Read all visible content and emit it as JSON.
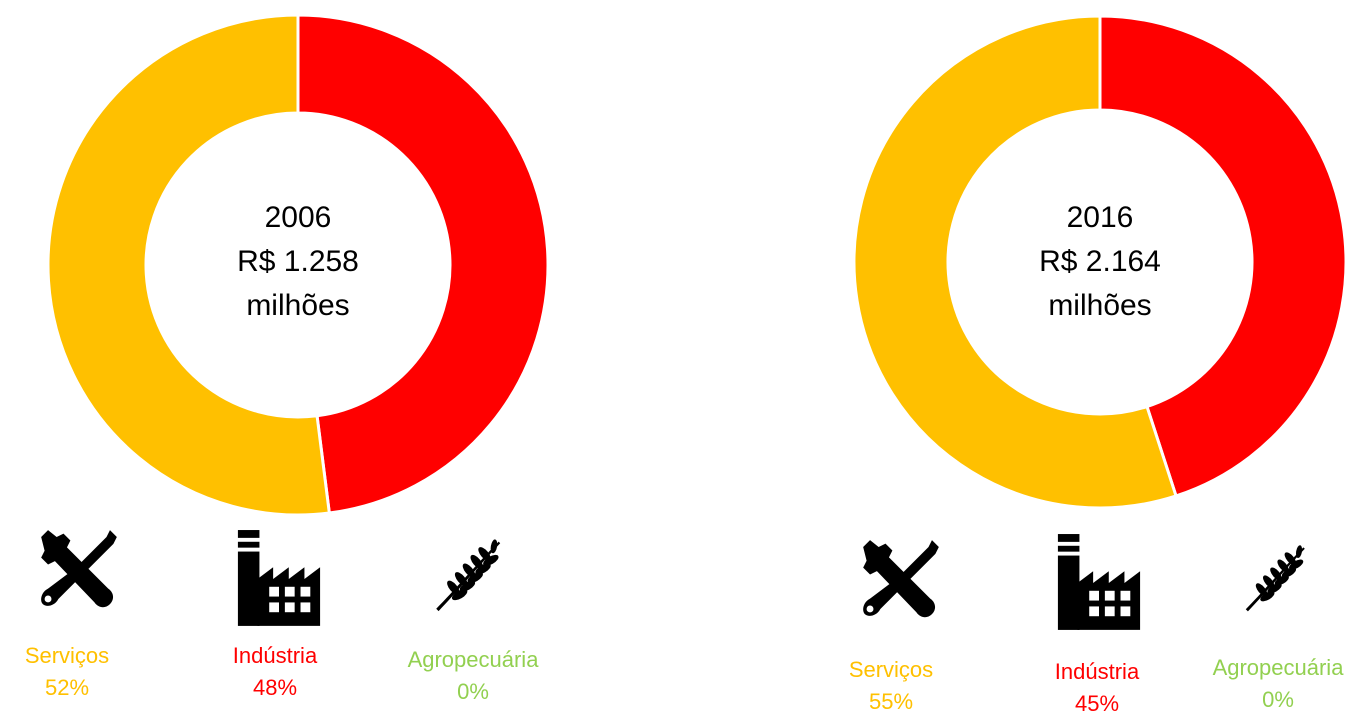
{
  "colors": {
    "servicos": "#FFC000",
    "industria": "#FF0000",
    "agropecuaria": "#92D050"
  },
  "chart_data": [
    {
      "type": "pie",
      "donut": true,
      "center": {
        "year": "2006",
        "value": "R$ 1.258",
        "unit": "milhões"
      },
      "slices": [
        {
          "label": "Indústria",
          "value": 48,
          "color": "#FF0000"
        },
        {
          "label": "Serviços",
          "value": 52,
          "color": "#FFC000"
        }
      ],
      "legend": [
        {
          "label": "Serviços",
          "percent": "52%",
          "icon": "tools-icon",
          "color": "#FFC000"
        },
        {
          "label": "Indústria",
          "percent": "48%",
          "icon": "factory-icon",
          "color": "#FF0000"
        },
        {
          "label": "Agropecuária",
          "percent": "0%",
          "icon": "wheat-icon",
          "color": "#92D050"
        }
      ]
    },
    {
      "type": "pie",
      "donut": true,
      "center": {
        "year": "2016",
        "value": "R$ 2.164",
        "unit": "milhões"
      },
      "slices": [
        {
          "label": "Indústria",
          "value": 45,
          "color": "#FF0000"
        },
        {
          "label": "Serviços",
          "value": 55,
          "color": "#FFC000"
        }
      ],
      "legend": [
        {
          "label": "Serviços",
          "percent": "55%",
          "icon": "tools-icon",
          "color": "#FFC000"
        },
        {
          "label": "Indústria",
          "percent": "45%",
          "icon": "factory-icon",
          "color": "#FF0000"
        },
        {
          "label": "Agropecuária",
          "percent": "0%",
          "icon": "wheat-icon",
          "color": "#92D050"
        }
      ]
    }
  ]
}
